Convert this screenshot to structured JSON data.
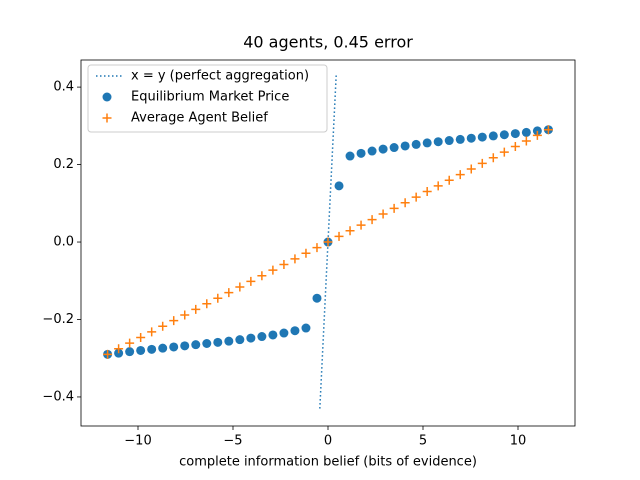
{
  "chart_data": {
    "type": "scatter",
    "title": "40 agents, 0.45 error",
    "x_label": "complete information belief (bits of evidence)",
    "xlim": [
      -13,
      13
    ],
    "ylim": [
      -0.475,
      0.47
    ],
    "xticks": [
      {
        "value": -10,
        "label": "−10"
      },
      {
        "value": -5,
        "label": "−5"
      },
      {
        "value": 0,
        "label": "0"
      },
      5,
      10
    ],
    "yticks": [
      {
        "value": -0.4,
        "label": "−0.4"
      },
      {
        "value": -0.2,
        "label": "−0.2"
      },
      {
        "value": 0,
        "label": "0.0"
      },
      0.2,
      0.4
    ],
    "legend": "upper left",
    "series": [
      {
        "name": "x = y (perfect aggregation)",
        "kind": "line",
        "line_style": "dotted",
        "color": "#1f77b4",
        "x": [
          -0.43,
          0.43
        ],
        "values": [
          -0.43,
          0.43
        ]
      },
      {
        "name": "Equilibrium Market Price",
        "kind": "scatter",
        "marker": "o",
        "color": "#1f77b4",
        "x": [
          -11.6,
          -11.02,
          -10.44,
          -9.86,
          -9.28,
          -8.7,
          -8.12,
          -7.54,
          -6.96,
          -6.38,
          -5.8,
          -5.22,
          -4.64,
          -4.06,
          -3.48,
          -2.9,
          -2.32,
          -1.74,
          -1.16,
          -0.58,
          0,
          0.58,
          1.16,
          1.74,
          2.32,
          2.9,
          3.48,
          4.06,
          4.64,
          5.22,
          5.8,
          6.38,
          6.96,
          7.54,
          8.12,
          8.7,
          9.28,
          9.86,
          10.44,
          11.02,
          11.6
        ],
        "values": [
          -0.29,
          -0.287,
          -0.283,
          -0.28,
          -0.277,
          -0.274,
          -0.271,
          -0.268,
          -0.265,
          -0.262,
          -0.259,
          -0.256,
          -0.252,
          -0.248,
          -0.244,
          -0.24,
          -0.235,
          -0.229,
          -0.222,
          -0.145,
          0,
          0.145,
          0.222,
          0.229,
          0.235,
          0.24,
          0.244,
          0.248,
          0.252,
          0.256,
          0.259,
          0.262,
          0.265,
          0.268,
          0.271,
          0.274,
          0.277,
          0.28,
          0.283,
          0.287,
          0.29
        ]
      },
      {
        "name": "Average Agent Belief",
        "kind": "scatter",
        "marker": "+",
        "color": "#ff7f0e",
        "x": [
          -11.6,
          -11.02,
          -10.44,
          -9.86,
          -9.28,
          -8.7,
          -8.12,
          -7.54,
          -6.96,
          -6.38,
          -5.8,
          -5.22,
          -4.64,
          -4.06,
          -3.48,
          -2.9,
          -2.32,
          -1.74,
          -1.16,
          -0.58,
          0,
          0.58,
          1.16,
          1.74,
          2.32,
          2.9,
          3.48,
          4.06,
          4.64,
          5.22,
          5.8,
          6.38,
          6.96,
          7.54,
          8.12,
          8.7,
          9.28,
          9.86,
          10.44,
          11.02,
          11.6
        ],
        "values": [
          -0.29,
          -0.2755,
          -0.261,
          -0.2465,
          -0.232,
          -0.2175,
          -0.203,
          -0.1885,
          -0.174,
          -0.1595,
          -0.145,
          -0.1305,
          -0.116,
          -0.1015,
          -0.087,
          -0.0725,
          -0.058,
          -0.0435,
          -0.029,
          -0.0145,
          0,
          0.0145,
          0.029,
          0.0435,
          0.058,
          0.0725,
          0.087,
          0.1015,
          0.116,
          0.1305,
          0.145,
          0.1595,
          0.174,
          0.1885,
          0.203,
          0.2175,
          0.232,
          0.2465,
          0.261,
          0.2755,
          0.29
        ]
      }
    ]
  }
}
